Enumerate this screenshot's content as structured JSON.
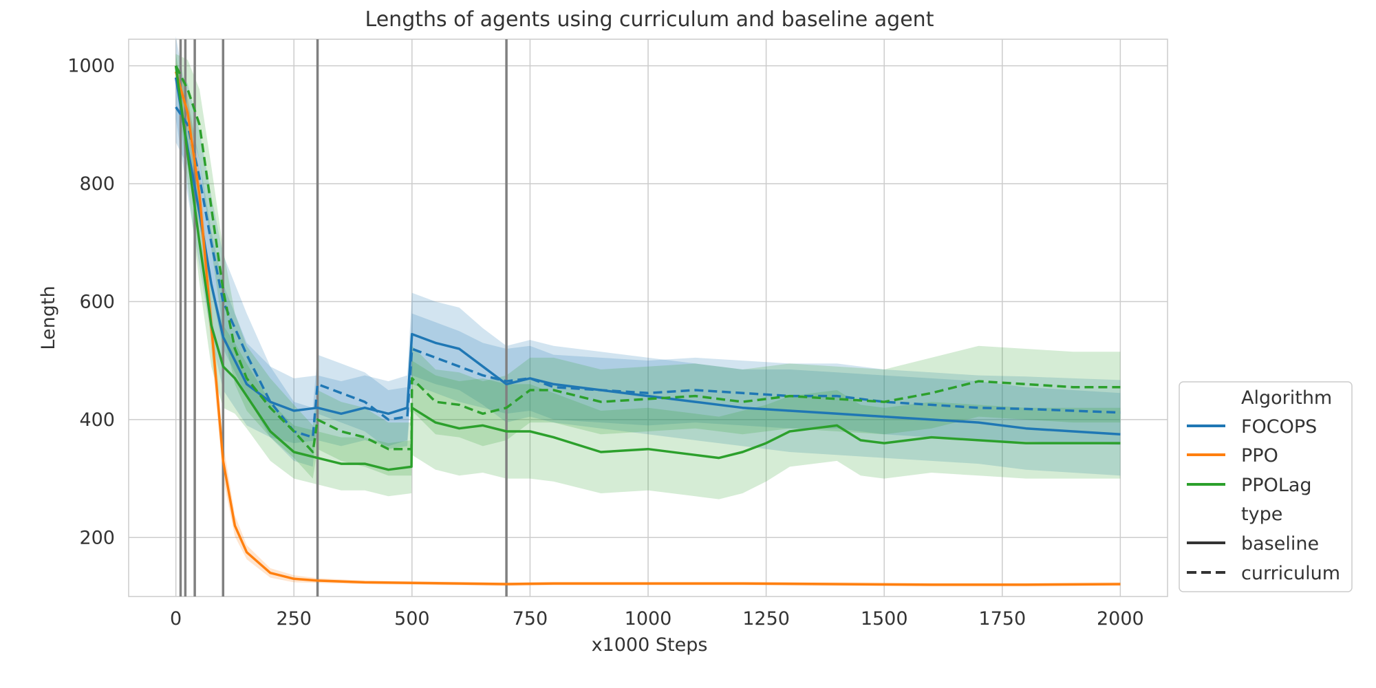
{
  "chart_data": {
    "type": "line",
    "title": "Lengths of agents using curriculum and baseline agent",
    "xlabel": "x1000 Steps",
    "ylabel": "Length",
    "xlim": [
      -100,
      2100
    ],
    "ylim": [
      100,
      1045
    ],
    "xticks": [
      0,
      250,
      500,
      750,
      1000,
      1250,
      1500,
      1750,
      2000
    ],
    "yticks": [
      200,
      400,
      600,
      800,
      1000
    ],
    "grid": true,
    "vlines": [
      10,
      20,
      40,
      100,
      300,
      700
    ],
    "legend": {
      "placement": "right, outside plot",
      "hue_title": "Algorithm",
      "style_title": "type",
      "hue_entries": [
        {
          "label": "FOCOPS",
          "color": "#1f77b4"
        },
        {
          "label": "PPO",
          "color": "#ff7f0e"
        },
        {
          "label": "PPOLag",
          "color": "#2ca02c"
        }
      ],
      "style_entries": [
        {
          "label": "baseline",
          "dash": "solid"
        },
        {
          "label": "curriculum",
          "dash": "dashed"
        }
      ]
    },
    "series": [
      {
        "algorithm": "FOCOPS",
        "type": "baseline",
        "color": "#1f77b4",
        "dash": "solid",
        "x": [
          0,
          25,
          50,
          75,
          100,
          150,
          200,
          250,
          300,
          350,
          400,
          450,
          490,
          500,
          550,
          600,
          650,
          700,
          750,
          800,
          900,
          1000,
          1100,
          1200,
          1300,
          1400,
          1500,
          1600,
          1700,
          1800,
          1900,
          2000
        ],
        "y": [
          980,
          860,
          750,
          630,
          540,
          460,
          430,
          415,
          420,
          410,
          420,
          410,
          420,
          545,
          530,
          520,
          490,
          460,
          470,
          460,
          450,
          440,
          430,
          420,
          415,
          410,
          405,
          400,
          395,
          385,
          380,
          375
        ],
        "band": [
          70,
          80,
          90,
          90,
          90,
          70,
          60,
          55,
          55,
          55,
          55,
          55,
          55,
          70,
          70,
          70,
          65,
          65,
          65,
          65,
          65,
          65,
          65,
          65,
          70,
          70,
          70,
          70,
          70,
          70,
          70,
          70
        ]
      },
      {
        "algorithm": "FOCOPS",
        "type": "curriculum",
        "color": "#1f77b4",
        "dash": "dashed",
        "x": [
          0,
          25,
          50,
          75,
          100,
          150,
          200,
          250,
          290,
          300,
          350,
          400,
          450,
          490,
          500,
          550,
          600,
          650,
          700,
          750,
          800,
          900,
          1000,
          1100,
          1200,
          1300,
          1400,
          1500,
          1600,
          1700,
          1800,
          1900,
          2000
        ],
        "y": [
          930,
          900,
          810,
          700,
          600,
          510,
          430,
          380,
          370,
          460,
          445,
          430,
          400,
          405,
          520,
          505,
          490,
          475,
          465,
          470,
          455,
          450,
          445,
          450,
          445,
          440,
          440,
          430,
          425,
          420,
          418,
          415,
          412
        ],
        "band": [
          60,
          70,
          80,
          80,
          80,
          70,
          60,
          50,
          50,
          50,
          50,
          50,
          50,
          50,
          60,
          60,
          60,
          55,
          55,
          55,
          55,
          55,
          55,
          55,
          55,
          55,
          55,
          55,
          55,
          55,
          55,
          55,
          55
        ]
      },
      {
        "algorithm": "PPO",
        "type": "baseline",
        "color": "#ff7f0e",
        "dash": "solid",
        "x": [
          0,
          25,
          50,
          75,
          100,
          125,
          150,
          200,
          250,
          300,
          400,
          500,
          600,
          700,
          800,
          1000,
          1200,
          1400,
          1600,
          1800,
          2000
        ],
        "y": [
          990,
          920,
          780,
          560,
          330,
          220,
          175,
          140,
          130,
          127,
          124,
          123,
          122,
          121,
          122,
          122,
          122,
          121,
          120,
          120,
          121
        ],
        "band": [
          15,
          30,
          40,
          40,
          30,
          18,
          12,
          8,
          6,
          4,
          3,
          3,
          3,
          3,
          3,
          3,
          3,
          3,
          3,
          3,
          3
        ]
      },
      {
        "algorithm": "PPOLag",
        "type": "baseline",
        "color": "#2ca02c",
        "dash": "solid",
        "x": [
          0,
          25,
          50,
          75,
          100,
          125,
          150,
          200,
          250,
          300,
          350,
          400,
          450,
          499,
          500,
          550,
          600,
          650,
          700,
          750,
          800,
          900,
          1000,
          1100,
          1150,
          1200,
          1250,
          1300,
          1350,
          1400,
          1450,
          1500,
          1600,
          1700,
          1800,
          1900,
          2000
        ],
        "y": [
          1000,
          850,
          700,
          560,
          490,
          470,
          440,
          380,
          345,
          335,
          325,
          325,
          315,
          320,
          420,
          395,
          385,
          390,
          380,
          380,
          370,
          345,
          350,
          340,
          335,
          345,
          360,
          380,
          385,
          390,
          365,
          360,
          370,
          365,
          360,
          360,
          360
        ],
        "band": [
          20,
          50,
          70,
          70,
          70,
          60,
          55,
          50,
          45,
          45,
          45,
          45,
          45,
          45,
          80,
          80,
          80,
          80,
          80,
          80,
          75,
          70,
          70,
          70,
          70,
          70,
          65,
          60,
          60,
          60,
          60,
          60,
          60,
          60,
          60,
          60,
          60
        ]
      },
      {
        "algorithm": "PPOLag",
        "type": "curriculum",
        "color": "#2ca02c",
        "dash": "dashed",
        "x": [
          0,
          25,
          50,
          75,
          100,
          125,
          150,
          200,
          250,
          290,
          300,
          350,
          400,
          450,
          499,
          500,
          550,
          600,
          650,
          700,
          750,
          800,
          900,
          1000,
          1100,
          1200,
          1300,
          1400,
          1500,
          1600,
          1700,
          1800,
          1900,
          2000
        ],
        "y": [
          1000,
          960,
          900,
          760,
          620,
          520,
          470,
          420,
          380,
          345,
          400,
          380,
          370,
          350,
          350,
          470,
          430,
          425,
          410,
          420,
          450,
          450,
          430,
          435,
          440,
          430,
          440,
          435,
          430,
          445,
          465,
          460,
          455,
          455
        ],
        "band": [
          20,
          50,
          60,
          70,
          70,
          60,
          55,
          50,
          45,
          45,
          50,
          50,
          50,
          45,
          45,
          55,
          55,
          55,
          55,
          55,
          55,
          55,
          55,
          55,
          55,
          55,
          55,
          55,
          55,
          60,
          60,
          60,
          60,
          60
        ]
      }
    ]
  }
}
